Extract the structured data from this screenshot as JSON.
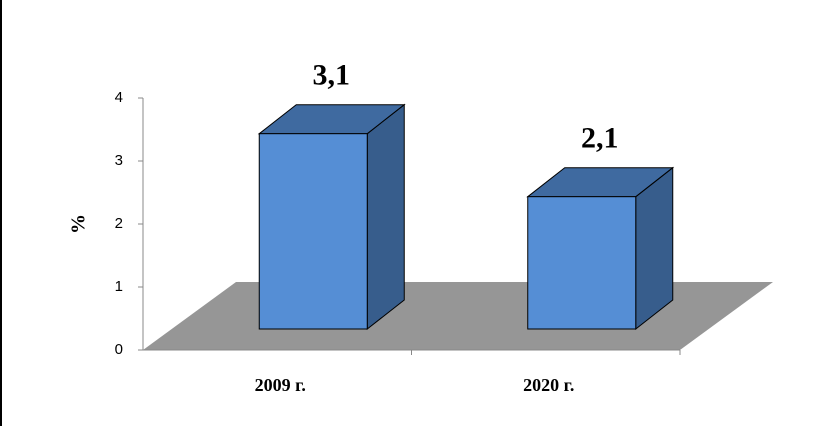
{
  "chart_data": {
    "type": "bar3d",
    "y_label": "%",
    "categories": [
      "2009 г.",
      "2020 г."
    ],
    "values": [
      3.1,
      2.1
    ],
    "value_labels": [
      "3,1",
      "2,1"
    ],
    "color": "#558ed5",
    "ylim": [
      0,
      4
    ],
    "yticks": [
      0,
      1,
      2,
      3,
      4
    ]
  }
}
